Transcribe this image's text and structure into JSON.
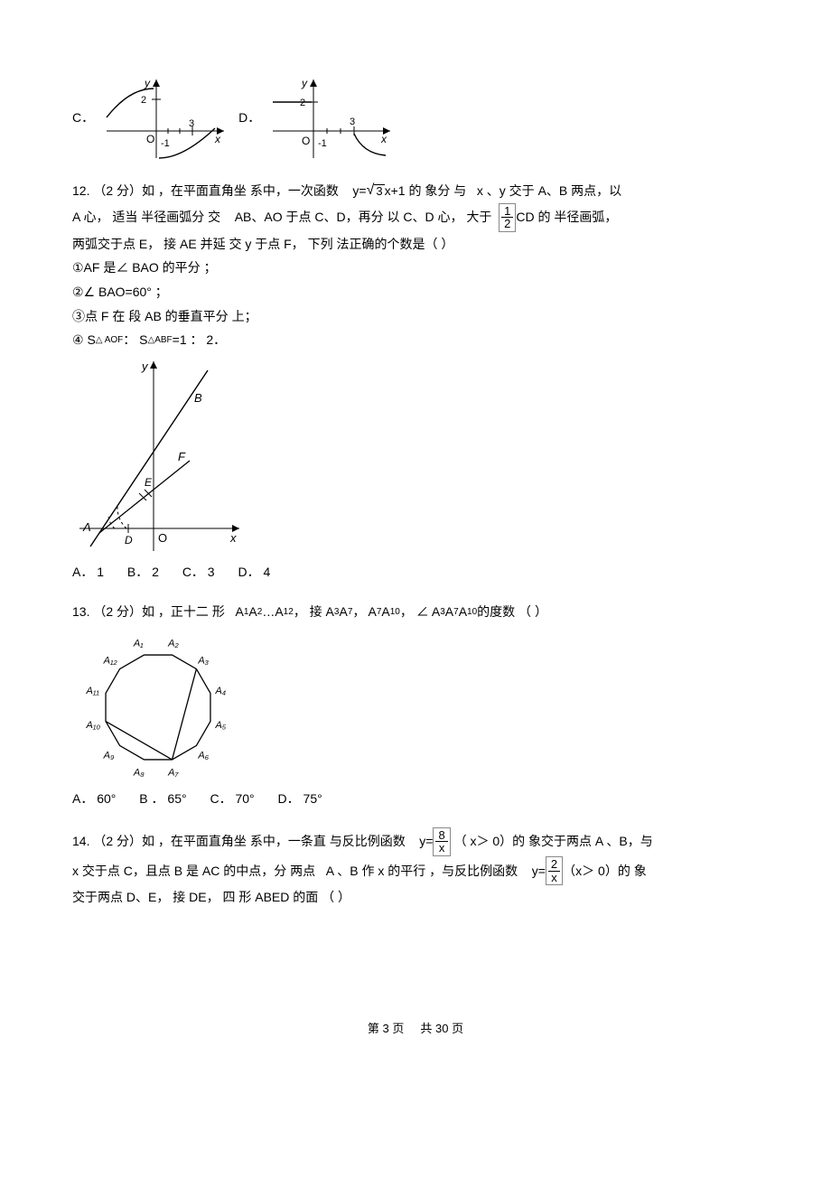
{
  "q11_options": {
    "C": "C．",
    "D": "D．"
  },
  "q11_graph": {
    "y_label": "y",
    "x_label": "x",
    "origin": "O",
    "y_tick": "2",
    "x_tick": "3",
    "neg_tick": "-1"
  },
  "q12": {
    "num": "12.",
    "line1_a": "（2 分）如 ，在平面直角坐 系中，一次函数",
    "line1_b": "y=",
    "line1_c": "x+1 的 象分 与",
    "line1_d": "x 、y 交于 A、B 两点，以",
    "line2_a": "A  心， 适当  半径画弧分 交",
    "line2_b": "AB、AO 于点 C、D，再分 以 C、D  心， 大于",
    "line2_c": "CD 的  半径画弧，",
    "line3": "两弧交于点 E， 接 AE 并延 交  y 于点 F， 下列 法正确的个数是（        ）",
    "s1": "①AF 是∠ BAO 的平分 ；",
    "s2": "②∠ BAO=60° ；",
    "s3": "③点 F 在 段 AB 的垂直平分 上；",
    "s4_a": "④ S",
    "s4_b": "△ AOF",
    "s4_c": "： S",
    "s4_d": "△ABF",
    "s4_e": "=1 ： 2．",
    "graph": {
      "y": "y",
      "x": "x",
      "A": "A",
      "B": "B",
      "E": "E",
      "F": "F",
      "D": "D",
      "O": "O"
    },
    "choices": {
      "A": "A． 1",
      "B": "B． 2",
      "C": "C． 3",
      "D": "D． 4"
    }
  },
  "q13": {
    "num": "13.",
    "line_a": "（2 分）如 ，正十二 形",
    "line_b": "A",
    "line_b1": "1",
    "line_c": "A",
    "line_c1": "2",
    "line_dots": "…",
    "line_d": "A",
    "line_d1": "12",
    "line_e": "， 接 A",
    "line_e1": "3",
    "line_f": "A",
    "line_f1": "7",
    "line_g": "， A",
    "line_g1": "7",
    "line_h": "A",
    "line_h1": "10",
    "line_i": "， ∠ A",
    "line_i1": "3",
    "line_j": " A",
    "line_j1": "7",
    "line_k": "A",
    "line_k1": "10",
    "line_l": " 的度数 （        ）",
    "vertices": [
      "A₁",
      "A₂",
      "A₃",
      "A₄",
      "A₅",
      "A₆",
      "A₇",
      "A₈",
      "A₉",
      "A₁₀",
      "A₁₁",
      "A₁₂"
    ],
    "choices": {
      "A": "A． 60°",
      "B": "B ． 65°",
      "C": "C． 70°",
      "D": "D． 75°"
    }
  },
  "q14": {
    "num": "14.",
    "line1_a": "（2 分）如 ，在平面直角坐 系中，一条直 与反比例函数",
    "line1_b": "y=",
    "line1_c": "（ x＞ 0）的 象交于两点  A 、B，与",
    "line2_a": "x 交于点  C，且点 B 是 AC 的中点，分  两点",
    "line2_b": "A 、B 作 x 的平行 ，与反比例函数",
    "line2_c": "y=",
    "line2_d": "（x＞ 0）的 象",
    "line3": "交于两点 D、E， 接 DE，  四 形   ABED 的面 （        ）",
    "frac1": {
      "num": "8",
      "den": "x"
    },
    "frac2": {
      "num": "2",
      "den": "x"
    }
  },
  "footer": {
    "a": "第",
    "b": "3",
    "c": "页",
    "d": "共",
    "e": "30",
    "f": "页"
  }
}
